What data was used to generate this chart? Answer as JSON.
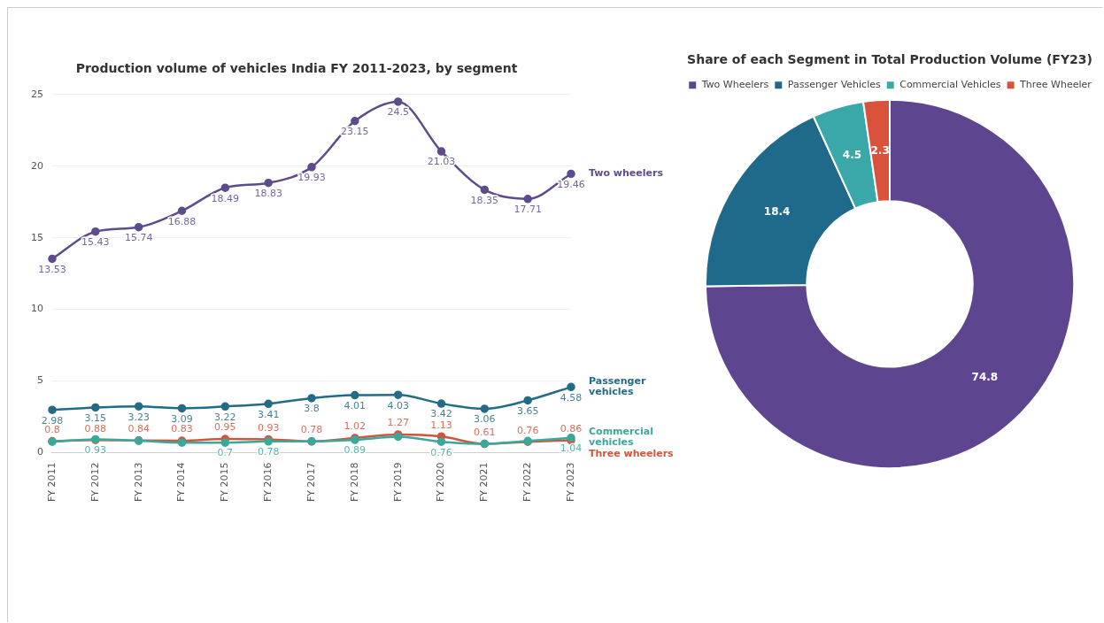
{
  "chart_data": [
    {
      "type": "line",
      "title": "Production volume of vehicles India FY 2011-2023, by segment",
      "categories": [
        "FY 2011",
        "FY 2012",
        "FY 2013",
        "FY 2014",
        "FY 2015",
        "FY 2016",
        "FY 2017",
        "FY 2018",
        "FY 2019",
        "FY 2020",
        "FY 2021",
        "FY 2022",
        "FY 2023"
      ],
      "series": [
        {
          "name": "Two wheelers",
          "color": "#5e4b8b",
          "values": [
            13.53,
            15.43,
            15.74,
            16.88,
            18.49,
            18.83,
            19.93,
            23.15,
            24.5,
            21.03,
            18.35,
            17.71,
            19.46
          ]
        },
        {
          "name": "Passenger vehicles",
          "color": "#236b86",
          "values": [
            2.98,
            3.15,
            3.23,
            3.09,
            3.22,
            3.41,
            3.8,
            4.01,
            4.03,
            3.42,
            3.06,
            3.65,
            4.58
          ]
        },
        {
          "name": "Commercial vehicles",
          "color": "#3aa89a",
          "values": [
            0.76,
            0.93,
            0.83,
            0.7,
            0.7,
            0.78,
            0.79,
            0.89,
            1.11,
            0.76,
            0.62,
            0.81,
            1.04
          ],
          "value_labels": [
            null,
            "0.93",
            null,
            null,
            "0.7",
            "0.78",
            null,
            "0.89",
            null,
            "0.76",
            null,
            null,
            "1.04"
          ]
        },
        {
          "name": "Three wheelers",
          "color": "#d0553d",
          "values": [
            0.8,
            0.88,
            0.84,
            0.83,
            0.95,
            0.93,
            0.78,
            1.02,
            1.27,
            1.13,
            0.61,
            0.76,
            0.86
          ]
        }
      ],
      "ylim": [
        0,
        25
      ],
      "yticks": [
        0,
        5,
        10,
        15,
        20,
        25
      ],
      "grid": "y",
      "legend": false,
      "marker": "circle",
      "data_labels": true
    },
    {
      "type": "donut",
      "title": "Share of each Segment in Total Production Volume (FY23)",
      "categories": [
        "Two Wheelers",
        "Passenger Vehicles",
        "Commercial Vehicles",
        "Three Wheeler"
      ],
      "values": [
        74.8,
        18.4,
        4.5,
        2.3
      ],
      "colors": [
        "#5e4590",
        "#1f6a8a",
        "#3aa8a8",
        "#d9533c"
      ],
      "legend": "top",
      "data_labels": true
    }
  ]
}
